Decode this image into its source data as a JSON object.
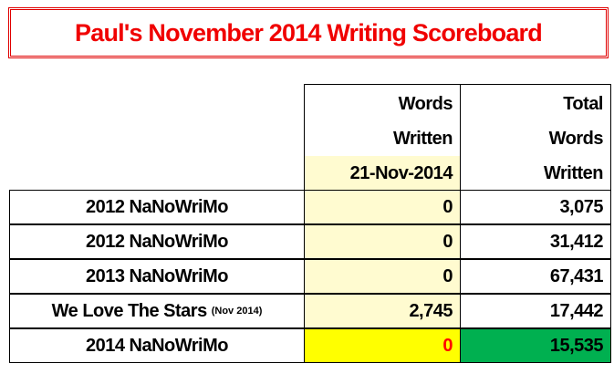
{
  "title": "Paul's November 2014 Writing Scoreboard",
  "headers": {
    "words_written": [
      "Words",
      "Written",
      "21-Nov-2014"
    ],
    "total_words_written": [
      "Total",
      "Words",
      "Written"
    ]
  },
  "rows": [
    {
      "name": "2012 NaNoWriMo",
      "note": "",
      "words": "0",
      "total": "3,075"
    },
    {
      "name": "2012 NaNoWriMo",
      "note": "",
      "words": "0",
      "total": "31,412"
    },
    {
      "name": "2013 NaNoWriMo",
      "note": "",
      "words": "0",
      "total": "67,431"
    },
    {
      "name": "We Love The Stars",
      "note": "(Nov 2014)",
      "words": "2,745",
      "total": "17,442"
    },
    {
      "name": "2014 NaNoWriMo",
      "note": "",
      "words": "0",
      "total": "15,535"
    }
  ],
  "colors": {
    "title": "#f00000",
    "words_column_bg": "#fffbd0",
    "highlight_words_bg": "#ffff00",
    "highlight_words_text": "#ff0000",
    "highlight_total_bg": "#00b050"
  }
}
